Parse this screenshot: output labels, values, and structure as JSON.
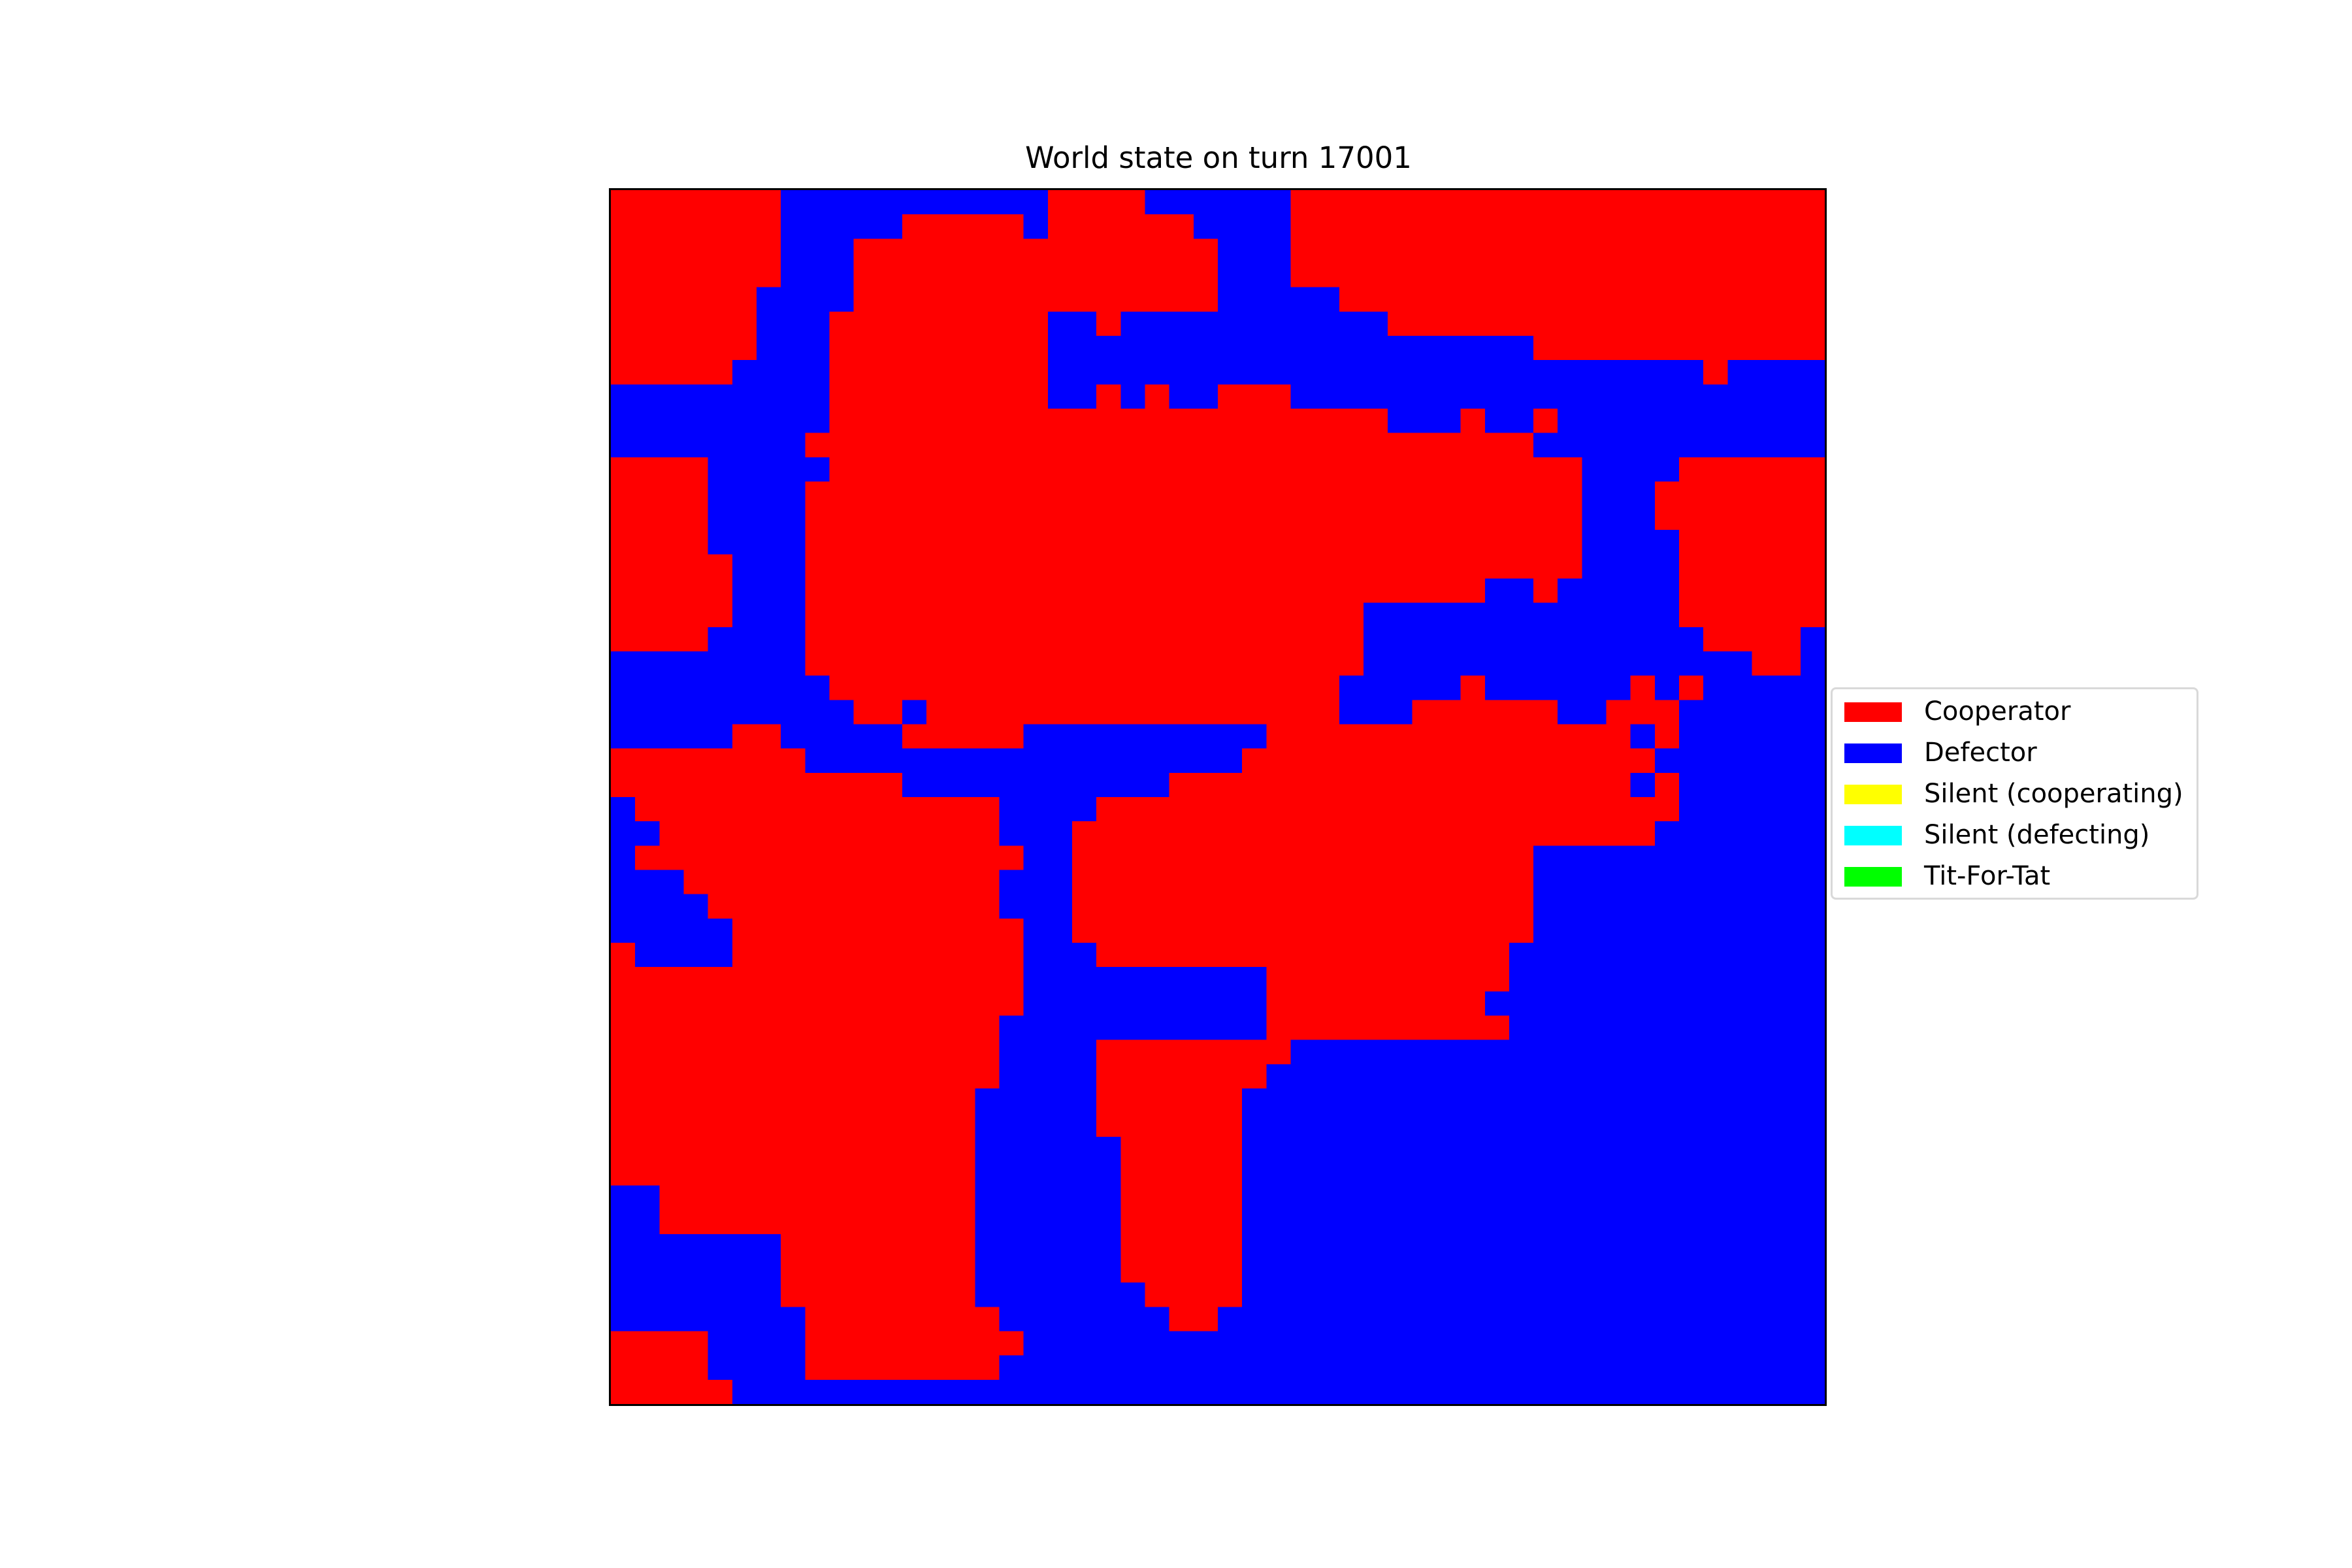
{
  "chart_data": {
    "type": "heatmap",
    "title": "World state on turn 17001",
    "xlabel": "",
    "ylabel": "",
    "grid": false,
    "legend_placement": "center-right",
    "rows": 50,
    "cols": 50,
    "palette": {
      "R": "#ff0000",
      "B": "#0000ff",
      "Y": "#ffff00",
      "C": "#00ffff",
      "G": "#00ff00"
    },
    "legend": [
      {
        "key": "R",
        "label": "Cooperator",
        "color": "#ff0000"
      },
      {
        "key": "B",
        "label": "Defector",
        "color": "#0000ff"
      },
      {
        "key": "Y",
        "label": "Silent (cooperating)",
        "color": "#ffff00"
      },
      {
        "key": "C",
        "label": "Silent (defecting)",
        "color": "#00ffff"
      },
      {
        "key": "G",
        "label": "Tit-For-Tat",
        "color": "#00ff00"
      }
    ],
    "cells": [
      "RRRRRRRBBBBBBBBBBBRRRRBBBBBBRRRRRRRRRRRRRRRRRRRRRR",
      "RRRRRRRBBBBBRRRRRBRRRRRRBBBBRRRRRRRRRRRRRRRRRRRRRR",
      "RRRRRRRBBBRRRRRRRRRRRRRRRBBBRRRRRRRRRRRRRRRRRRRRRR",
      "RRRRRRRBBBRRRRRRRRRRRRRRRBBBRRRRRRRRRRRRRRRRRRRRRR",
      "RRRRRRBBBBRRRRRRRRRRRRRRRBBBBBRRRRRRRRRRRRRRRRRRRR",
      "RRRRRRBBBRRRRRRRRRBBRBBBBBBBBBBBRRRRRRRRRRRRRRRRRR",
      "RRRRRRBBBRRRRRRRRRBBBBBBBBBBBBBBBBBBBBRRRRRRRRRRRR",
      "RRRRRBBBBRRRRRRRRRBBBBBBBBBBBBBBBBBBBBBBBBBBBRBBBB",
      "BBBBBBBBBRRRRRRRRRBBRBRBBRRRBBBBBBBBBBBBBBBBBBBBBB",
      "BBBBBBBBBRRRRRRRRRRRRRRRRRRRRRRRBBBRBBRBBBBBBBBBBB",
      "BBBBBBBBRRRRRRRRRRRRRRRRRRRRRRRRRRRRRRBBBBBBBBBBBB",
      "RRRRBBBBBRRRRRRRRRRRRRRRRRRRRRRRRRRRRRRRBBBBRRRRRR",
      "RRRRBBBBRRRRRRRRRRRRRRRRRRRRRRRRRRRRRRRRBBBRRRRRRR",
      "RRRRBBBBRRRRRRRRRRRRRRRRRRRRRRRRRRRRRRRRBBBRRRRRRR",
      "RRRRBBBBRRRRRRRRRRRRRRRRRRRRRRRRRRRRRRRRBBBBRRRRRR",
      "RRRRRBBBRRRRRRRRRRRRRRRRRRRRRRRRRRRRRRRRBBBBRRRRRR",
      "RRRRRBBBRRRRRRRRRRRRRRRRRRRRRRRRRRRRBBRBBBBBRRRRRR",
      "RRRRRBBBRRRRRRRRRRRRRRRRRRRRRRRBBBBBBBBBBBBBRRRRRR",
      "RRRRBBBBRRRRRRRRRRRRRRRRRRRRRRRBBBBBBBBBBBBBBRRRRB",
      "BBBBBBBBRRRRRRRRRRRRRRRRRRRRRRRBBBBBBBBBBBBBBBBRRB",
      "BBBBBBBBBRRRRRRRRRRRRRRRRRRRRRBBBBBRBBBBBBRBRBBBBB",
      "BBBBBBBBBBRRBRRRRRRRRRRRRRRRRRBBBRRRRRRBBRRRBBBBBB",
      "BBBBBRRBBBBBRRRRRBBBBBBBBBBRRRRRRRRRRRRRRRBRBBBBBB",
      "RRRRRRRRBBBBBBBBBBBBBBBBBBRRRRRRRRRRRRRRRRRBBBBBBB",
      "RRRRRRRRRRRRBBBBBBBBBBBRRRRRRRRRRRRRRRRRRRBRBBBBBB",
      "BRRRRRRRRRRRRRRRBBBBRRRRRRRRRRRRRRRRRRRRRRRRBBBBBB",
      "BBRRRRRRRRRRRRRRBBBRRRRRRRRRRRRRRRRRRRRRRRRBBBBBBB",
      "BRRRRRRRRRRRRRRRRBBRRRRRRRRRRRRRRRRRRRBBBBBBBBBBBB",
      "BBBRRRRRRRRRRRRRBBBRRRRRRRRRRRRRRRRRRRBBBBBBBBBBBB",
      "BBBBRRRRRRRRRRRRBBBRRRRRRRRRRRRRRRRRRRBBBBBBBBBBBB",
      "BBBBBRRRRRRRRRRRRBBRRRRRRRRRRRRRRRRRRRBBBBBBBBBBBB",
      "RBBBBRRRRRRRRRRRRBBBRRRRRRRRRRRRRRRRRBBBBBBBBBBBBB",
      "RRRRRRRRRRRRRRRRRBBBBBBBBBBRRRRRRRRRRBBBBBBBBBBBBB",
      "RRRRRRRRRRRRRRRRRBBBBBBBBBBRRRRRRRRRBBBBBBBBBBBBBB",
      "RRRRRRRRRRRRRRRRBBBBBBBBBBBRRRRRRRRRRBBBBBBBBBBBBB",
      "RRRRRRRRRRRRRRRRBBBBRRRRRRRRBBBBBBBBBBBBBBBBBBBBBB",
      "RRRRRRRRRRRRRRRRBBBBRRRRRRRBBBBBBBBBBBBBBBBBBBBBBB",
      "RRRRRRRRRRRRRRRBBBBBRRRRRRBBBBBBBBBBBBBBBBBBBBBBBB",
      "RRRRRRRRRRRRRRRBBBBBRRRRRRBBBBBBBBBBBBBBBBBBBBBBBB",
      "RRRRRRRRRRRRRRRBBBBBBRRRRRBBBBBBBBBBBBBBBBBBBBBBBB",
      "RRRRRRRRRRRRRRRBBBBBBRRRRRBBBBBBBBBBBBBBBBBBBBBBBB",
      "BBRRRRRRRRRRRRRBBBBBBRRRRRBBBBBBBBBBBBBBBBBBBBBBBB",
      "BBRRRRRRRRRRRRRBBBBBBRRRRRBBBBBBBBBBBBBBBBBBBBBBBB",
      "BBBBBBBRRRRRRRRBBBBBBRRRRRBBBBBBBBBBBBBBBBBBBBBBBB",
      "BBBBBBBRRRRRRRRBBBBBBRRRRRBBBBBBBBBBBBBBBBBBBBBBBB",
      "BBBBBBBRRRRRRRRBBBBBBBRRRRBBBBBBBBBBBBBBBBBBBBBBBB",
      "BBBBBBBBRRRRRRRRBBBBBBBRRBBBBBBBBBBBBBBBBBBBBBBBBB",
      "RRRRBBBBRRRRRRRRRBBBBBBBBBBBBBBBBBBBBBBBBBBBBBBBBB",
      "RRRRBBBBRRRRRRRRBBBBBBBBBBBBBBBBBBBBBBBBBBBBBBBBBB",
      "RRRRRBBBBBBBBBBBBBBBBBBBBBBBBBBBBBBBBBBBBBBBBBBBBB"
    ]
  }
}
